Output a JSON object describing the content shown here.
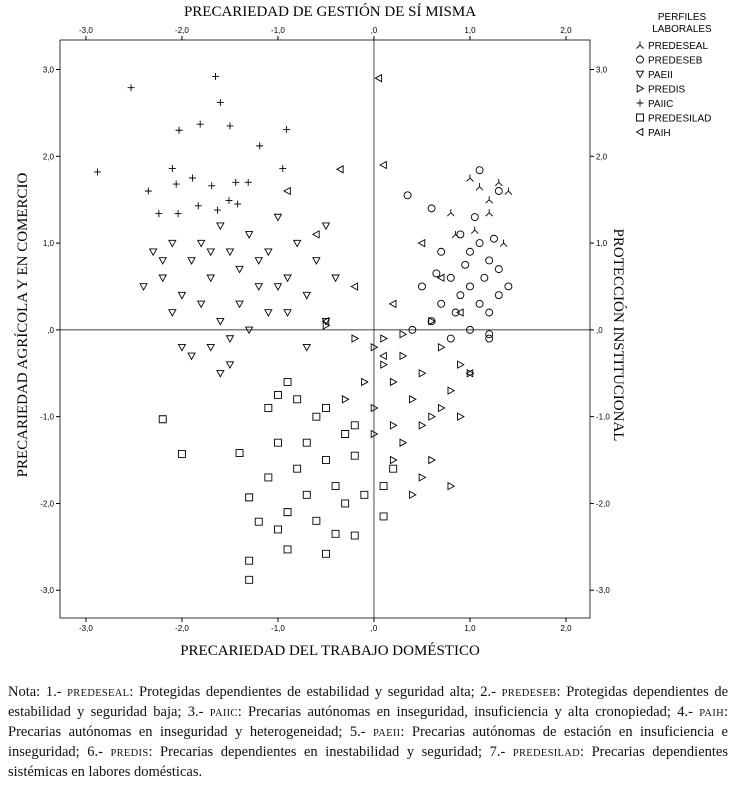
{
  "chart_data": {
    "type": "scatter",
    "x_top_label": "PRECARIEDAD DE GESTIÓN DE SÍ MISMA",
    "x_label": "PRECARIEDAD DEL TRABAJO DOMÉSTICO",
    "y_label": "PRECARIEDAD AGRÍCOLA Y EN COMERCIO",
    "y2_label": "PROTECCIÓN INSTITUCIONAL",
    "legend_title": [
      "PERFILES",
      "LABORALES"
    ],
    "legend_position": "top-right",
    "reference_lines": true,
    "xlim": [
      -3.27,
      2.25
    ],
    "ylim": [
      -3.32,
      3.34
    ],
    "xticks": [
      {
        "value": -3,
        "label": "-3,0"
      },
      {
        "value": -2,
        "label": "-2,0"
      },
      {
        "value": -1,
        "label": "-1,0"
      },
      {
        "value": 0,
        "label": ",0"
      },
      {
        "value": 1,
        "label": "1,0"
      },
      {
        "value": 2,
        "label": "2,0"
      }
    ],
    "yticks": [
      {
        "value": -3,
        "label": "-3,0"
      },
      {
        "value": -2,
        "label": "-2,0"
      },
      {
        "value": -1,
        "label": "-1,0"
      },
      {
        "value": 0,
        "label": ",0"
      },
      {
        "value": 1,
        "label": "1,0"
      },
      {
        "value": 2,
        "label": "2,0"
      },
      {
        "value": 3,
        "label": "3,0"
      }
    ],
    "series": [
      {
        "name": "PREDESEAL",
        "marker": "y-inverted",
        "color": "#000000",
        "x": [
          1.0,
          1.1,
          1.2,
          1.3,
          0.8,
          1.2,
          1.4,
          1.05,
          1.35,
          0.85
        ],
        "values": [
          1.75,
          1.65,
          1.5,
          1.7,
          1.35,
          1.35,
          1.6,
          1.15,
          1.0,
          1.1
        ]
      },
      {
        "name": "PREDESEB",
        "marker": "circle",
        "color": "#000000",
        "x": [
          1.1,
          0.35,
          0.6,
          1.3,
          0.9,
          1.0,
          1.1,
          1.2,
          1.3,
          0.8,
          0.9,
          1.0,
          1.1,
          1.2,
          0.7,
          0.6,
          0.5,
          0.4,
          0.8,
          1.0,
          1.2,
          1.3,
          1.4,
          0.7,
          1.05,
          0.95,
          1.15,
          0.85,
          1.25,
          0.65,
          1.2
        ],
        "values": [
          1.84,
          1.55,
          1.4,
          1.6,
          1.1,
          0.9,
          1.0,
          0.8,
          0.7,
          0.6,
          0.4,
          0.5,
          0.3,
          0.2,
          0.3,
          0.1,
          0.5,
          0.0,
          -0.1,
          0.0,
          -0.1,
          0.4,
          0.5,
          0.9,
          1.3,
          0.75,
          0.6,
          0.2,
          1.05,
          0.65,
          -0.05
        ]
      },
      {
        "name": "PAEII",
        "marker": "triangle-down",
        "color": "#000000",
        "x": [
          -2.3,
          -2.2,
          -2.1,
          -2.4,
          -2.0,
          -1.9,
          -1.8,
          -1.7,
          -1.6,
          -1.5,
          -1.4,
          -1.3,
          -1.2,
          -1.1,
          -1.0,
          -0.9,
          -0.8,
          -0.7,
          -0.6,
          -0.5,
          -2.1,
          -1.9,
          -1.7,
          -1.6,
          -1.5,
          -1.3,
          -1.1,
          -0.5,
          -0.7,
          -1.8,
          -2.0,
          -1.4,
          -1.2,
          -0.9,
          -1.6,
          -2.2,
          -1.0,
          -1.5,
          -0.4,
          -1.7
        ],
        "values": [
          0.9,
          0.6,
          1.0,
          0.5,
          0.4,
          0.8,
          1.0,
          0.6,
          1.2,
          0.9,
          0.7,
          1.1,
          0.5,
          0.9,
          1.3,
          0.6,
          1.0,
          0.4,
          0.8,
          1.2,
          0.2,
          -0.3,
          -0.2,
          -0.5,
          -0.4,
          0.0,
          0.2,
          0.1,
          -0.2,
          0.3,
          -0.2,
          0.3,
          0.8,
          0.2,
          0.1,
          0.8,
          0.5,
          -0.1,
          0.6,
          0.9
        ]
      },
      {
        "name": "PREDIS",
        "marker": "triangle-right",
        "color": "#000000",
        "x": [
          -0.5,
          -0.2,
          0.0,
          0.1,
          0.2,
          0.3,
          0.4,
          0.5,
          0.6,
          0.7,
          0.8,
          0.9,
          1.0,
          0.3,
          0.5,
          0.6,
          0.2,
          0.0,
          -0.1,
          0.4,
          0.8,
          0.1,
          0.6,
          0.7,
          0.3,
          -0.3,
          0.9,
          0.2,
          0.5,
          0.0
        ],
        "values": [
          0.05,
          -0.1,
          -0.2,
          -0.4,
          -0.6,
          -0.3,
          -0.8,
          -0.5,
          -1.0,
          -0.2,
          -0.7,
          -0.4,
          -0.5,
          -1.3,
          -1.7,
          -1.5,
          -1.1,
          -0.9,
          -0.6,
          -1.9,
          -1.8,
          -0.1,
          0.1,
          -0.9,
          -0.05,
          -0.8,
          -1.0,
          -1.5,
          -1.1,
          -1.2
        ]
      },
      {
        "name": "PAIIC",
        "marker": "plus",
        "color": "#000000",
        "x": [
          -2.53,
          -1.65,
          -2.88,
          -1.6,
          -2.03,
          -1.81,
          -1.5,
          -1.19,
          -0.91,
          -2.35,
          -2.1,
          -2.06,
          -1.89,
          -1.69,
          -1.44,
          -1.31,
          -2.24,
          -2.04,
          -1.83,
          -1.63,
          -1.51,
          -1.42,
          -0.95
        ],
        "values": [
          2.79,
          2.92,
          1.82,
          2.62,
          2.3,
          2.37,
          2.35,
          2.12,
          2.31,
          1.6,
          1.86,
          1.68,
          1.75,
          1.66,
          1.7,
          1.7,
          1.34,
          1.34,
          1.43,
          1.38,
          1.49,
          1.45,
          1.86
        ]
      },
      {
        "name": "PREDESILAD",
        "marker": "square",
        "color": "#000000",
        "x": [
          -2.2,
          -2.0,
          -1.4,
          -1.3,
          -1.2,
          -1.3,
          -1.3,
          -1.0,
          -0.9,
          -1.1,
          -0.8,
          -0.9,
          -0.7,
          -0.6,
          -0.5,
          -0.4,
          -0.3,
          -0.2,
          -0.2,
          -0.5,
          -0.9,
          -0.6,
          -0.3,
          0.1,
          0.1,
          -0.1,
          -1.0,
          -0.7,
          -0.4,
          -1.1,
          -0.8,
          0.2,
          -1.0,
          -0.5,
          -0.2
        ],
        "values": [
          -1.03,
          -1.43,
          -1.42,
          -1.93,
          -2.21,
          -2.66,
          -2.88,
          -0.75,
          -0.6,
          -0.9,
          -1.6,
          -2.1,
          -1.9,
          -2.2,
          -1.5,
          -1.8,
          -2.0,
          -2.37,
          -1.45,
          -2.58,
          -2.53,
          -1.0,
          -1.2,
          -2.15,
          -1.8,
          -1.9,
          -1.3,
          -1.3,
          -2.35,
          -1.7,
          -0.8,
          -1.6,
          -2.3,
          -0.9,
          -1.1
        ]
      },
      {
        "name": "PAIH",
        "marker": "triangle-left",
        "color": "#000000",
        "x": [
          0.05,
          0.1,
          -0.35,
          -0.9,
          -0.6,
          -0.2,
          0.5,
          0.7,
          1.0,
          -0.5,
          0.2,
          0.9,
          0.1
        ],
        "values": [
          2.9,
          1.9,
          1.85,
          1.6,
          1.1,
          0.5,
          1.0,
          0.6,
          -0.5,
          0.1,
          0.3,
          0.2,
          -0.3
        ]
      }
    ]
  },
  "note": [
    "Nota: 1.- ",
    "PREDESEAL",
    ": Protegidas dependientes de estabilidad y seguridad alta; 2.- ",
    "PREDESEB",
    ": Protegidas dependientes de estabilidad y seguridad baja; 3.- ",
    "PAIIC",
    ": Precarias autónomas en inseguridad, insuficiencia y alta cronopiedad; 4.- ",
    "PAIH",
    ": Precarias autónomas en inseguridad y heterogeneidad; 5.- ",
    "PAEII",
    ": Precarias autónomas de estación en insuficiencia e inseguridad; 6.- ",
    "PREDIS",
    ": Precarias dependientes en inestabilidad y seguridad; 7.- ",
    "PREDESILAD",
    ": Precarias dependientes sistémicas en labores domésticas."
  ]
}
